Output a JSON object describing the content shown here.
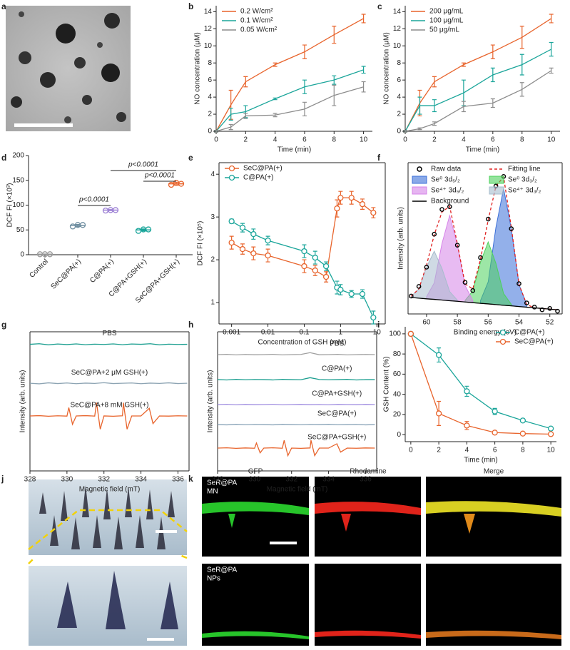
{
  "panel_labels": [
    "a",
    "b",
    "c",
    "d",
    "e",
    "f",
    "g",
    "h",
    "i",
    "j",
    "k"
  ],
  "panel_k": {
    "columns": [
      "GFP",
      "Rhodamine",
      "Merge"
    ],
    "rows": [
      [
        "SeR@PA",
        "MN"
      ],
      [
        "SeR@PA",
        "NPs"
      ]
    ]
  },
  "chart_data": [
    {
      "type": "line",
      "xlabel": "Time (min)",
      "ylabel": "NO concentration (μM)",
      "legend": "upper left",
      "frame": "axes",
      "x": [
        0,
        1,
        2,
        4,
        6,
        8,
        10
      ],
      "xlim": [
        0,
        10.6
      ],
      "ylim": [
        0,
        14.7
      ],
      "xticks": [
        0,
        2,
        4,
        6,
        8,
        10
      ],
      "yticks": [
        0,
        2,
        4,
        6,
        8,
        10,
        12,
        14
      ],
      "series": [
        {
          "name": "0.2 W/cm²",
          "color": "#e8642c",
          "values": [
            0,
            3.1,
            5.8,
            7.8,
            9.3,
            11.3,
            13.2
          ],
          "errors": [
            0.1,
            1.7,
            0.6,
            0.2,
            0.8,
            1.0,
            0.5
          ]
        },
        {
          "name": "0.1 W/cm²",
          "color": "#1aa59a",
          "values": [
            0,
            2.0,
            2.3,
            3.8,
            5.2,
            6.0,
            7.2
          ],
          "errors": [
            0.1,
            0.7,
            0.7,
            0.1,
            0.8,
            0.5,
            0.4
          ]
        },
        {
          "name": "0.05 W/cm²",
          "color": "#8c8c8c",
          "values": [
            0,
            0.5,
            1.8,
            1.9,
            2.6,
            4.2,
            5.2
          ],
          "errors": [
            0.1,
            0.3,
            0.3,
            0.2,
            0.8,
            1.2,
            0.6
          ]
        }
      ]
    },
    {
      "type": "line",
      "xlabel": "Time (min)",
      "ylabel": "NO concentration (μM)",
      "legend": "upper left",
      "frame": "axes",
      "x": [
        0,
        1,
        2,
        4,
        6,
        8,
        10
      ],
      "xlim": [
        0,
        10.6
      ],
      "ylim": [
        0,
        14.7
      ],
      "xticks": [
        0,
        2,
        4,
        6,
        8,
        10
      ],
      "yticks": [
        0,
        2,
        4,
        6,
        8,
        10,
        12,
        14
      ],
      "series": [
        {
          "name": "200 μg/mL",
          "color": "#e8642c",
          "values": [
            0,
            3.3,
            5.8,
            7.8,
            9.3,
            11.0,
            13.2
          ],
          "errors": [
            0.1,
            1.5,
            0.6,
            0.2,
            0.8,
            1.3,
            0.5
          ]
        },
        {
          "name": "100 μg/mL",
          "color": "#1aa59a",
          "values": [
            0,
            3.0,
            3.0,
            4.5,
            6.6,
            7.8,
            9.6
          ],
          "errors": [
            0.1,
            1.0,
            0.7,
            1.5,
            0.8,
            1.2,
            0.8
          ]
        },
        {
          "name": "50 μg/mL",
          "color": "#8c8c8c",
          "values": [
            0,
            0.3,
            0.9,
            2.9,
            3.3,
            4.9,
            7.1
          ],
          "errors": [
            0.1,
            0.1,
            0.2,
            0.6,
            0.5,
            0.8,
            0.3
          ]
        }
      ]
    },
    {
      "type": "strip",
      "ylabel": "DCF FI (×10³)",
      "frame": "axes",
      "categories": [
        "Control",
        "SeC@PA(+)",
        "C@PA(+)",
        "C@PA+GSH(+)",
        "SeC@PA+GSH(+)"
      ],
      "colors": [
        "#9a9a9a",
        "#6f8ea0",
        "#9b7fd4",
        "#1aa59a",
        "#e8642c"
      ],
      "values": [
        1,
        59,
        90,
        50,
        143
      ],
      "errors": [
        0.5,
        2,
        1,
        2,
        3
      ],
      "points": [
        [
          1,
          1,
          1
        ],
        [
          57,
          60,
          60
        ],
        [
          89,
          90,
          90
        ],
        [
          48,
          51,
          51
        ],
        [
          141,
          145,
          143
        ]
      ],
      "ylim": [
        0,
        200
      ],
      "yticks": [
        0,
        50,
        100,
        150,
        200
      ],
      "annotations": [
        "p<0.0001",
        "p<0.0001",
        "p<0.0001"
      ]
    },
    {
      "type": "line",
      "xlabel": "Concentration of GSH (mM)",
      "ylabel": "DCF FI (×10⁵)",
      "legend": "upper left",
      "frame": "box",
      "xscale": "log",
      "x": [
        0.001,
        0.002,
        0.004,
        0.01,
        0.1,
        0.2,
        0.4,
        0.8,
        1,
        2,
        4,
        8
      ],
      "xlim": [
        0.00045,
        17
      ],
      "ylim": [
        0.5,
        4.27
      ],
      "xticks": [
        0.001,
        0.01,
        0.1,
        1,
        10
      ],
      "yticks": [
        1,
        2,
        3,
        4
      ],
      "series": [
        {
          "name": "SeC@PA(+)",
          "color": "#e8642c",
          "marker": "circle",
          "values": [
            2.4,
            2.25,
            2.15,
            2.1,
            1.85,
            1.75,
            1.6,
            3.2,
            3.45,
            3.45,
            3.3,
            3.1
          ],
          "errors": [
            0.15,
            0.12,
            0.15,
            0.15,
            0.15,
            0.12,
            0.12,
            0.2,
            0.15,
            0.15,
            0.12,
            0.12
          ]
        },
        {
          "name": "C@PA(+)",
          "color": "#1aa59a",
          "marker": "circle",
          "values": [
            2.9,
            2.75,
            2.6,
            2.45,
            2.2,
            2.05,
            1.85,
            1.35,
            1.3,
            1.2,
            1.2,
            0.65
          ],
          "errors": [
            0.05,
            0.1,
            0.12,
            0.1,
            0.15,
            0.15,
            0.1,
            0.15,
            0.12,
            0.08,
            0.1,
            0.15
          ]
        }
      ]
    },
    {
      "type": "line",
      "xlabel": "Binding energy (eV)",
      "ylabel": "Intensity (arb. units)",
      "legend": "grid",
      "frame": "box",
      "x": [
        61,
        60.5,
        60,
        59.5,
        59,
        58.5,
        58,
        57.5,
        57,
        56.5,
        56,
        55.5,
        55,
        54.5,
        54,
        53.5,
        53,
        52.5,
        52,
        51.5
      ],
      "xlim": [
        61.2,
        51.2
      ],
      "ylim": [
        0,
        1.1
      ],
      "xticks": [
        60,
        58,
        56,
        54,
        52
      ],
      "series": [
        {
          "name": "Raw data",
          "kind": "points",
          "color": "#000000",
          "values": [
            0.13,
            0.2,
            0.34,
            0.58,
            0.76,
            0.78,
            0.5,
            0.23,
            0.17,
            0.41,
            0.69,
            0.93,
            1.0,
            0.62,
            0.22,
            0.08,
            0.05,
            0.03,
            0.04,
            0.02
          ]
        },
        {
          "name": "Fitting line",
          "kind": "dashed",
          "color": "#e02020",
          "values": [
            0.128,
            0.182,
            0.355,
            0.576,
            0.741,
            0.783,
            0.51,
            0.218,
            0.182,
            0.397,
            0.683,
            0.928,
            0.998,
            0.63,
            0.214,
            0.069,
            0.044,
            0.04,
            0.035,
            0.03
          ]
        },
        {
          "name": "Se⁰ 3d₅/₂",
          "kind": "area",
          "color": "#3b6fd8",
          "values": [
            null,
            null,
            null,
            null,
            null,
            null,
            null,
            null,
            null,
            0.097,
            0.233,
            0.628,
            0.913,
            0.619,
            0.214,
            0.069,
            null,
            null,
            null,
            null
          ]
        },
        {
          "name": "Se⁰ 3d₃/₂",
          "kind": "area",
          "color": "#4cd15c",
          "values": [
            null,
            null,
            null,
            null,
            null,
            null,
            null,
            0.098,
            0.167,
            0.377,
            0.523,
            0.368,
            0.148,
            0.07,
            null,
            null,
            null,
            null,
            null,
            null
          ]
        },
        {
          "name": "Se⁴⁺ 3d₅/₂",
          "kind": "area",
          "color": "#d684e8",
          "values": [
            null,
            null,
            0.125,
            0.226,
            0.511,
            0.716,
            0.502,
            0.207,
            0.097,
            null,
            null,
            null,
            null,
            null,
            null,
            null,
            null,
            null,
            null,
            null
          ]
        },
        {
          "name": "Se⁴⁺ 3d₃/₂",
          "kind": "area",
          "color": "#a7bccd",
          "values": [
            0.128,
            0.182,
            0.34,
            0.456,
            0.331,
            0.163,
            0.1,
            null,
            null,
            null,
            null,
            null,
            null,
            null,
            null,
            null,
            null,
            null,
            null,
            null
          ]
        },
        {
          "name": "Background",
          "kind": "line",
          "color": "#000000",
          "values": [
            0.12,
            0.115,
            0.11,
            0.106,
            0.101,
            0.096,
            0.092,
            0.087,
            0.082,
            0.077,
            0.073,
            0.068,
            0.063,
            0.059,
            0.054,
            0.049,
            0.044,
            0.04,
            0.035,
            0.03
          ]
        }
      ]
    },
    {
      "type": "line",
      "xlabel": "Magnetic field (mT)",
      "ylabel": "Intensity (arb. units)",
      "legend": "inline",
      "label_position": "center",
      "frame": "box",
      "xlim": [
        328,
        336.6
      ],
      "ylim": [
        0,
        10
      ],
      "xticks": [
        328,
        330,
        332,
        334,
        336
      ],
      "series": [
        {
          "name": "PBS",
          "color": "#1a9e8f",
          "x": [
            328,
            328.5,
            329,
            329.5,
            330,
            330.5,
            331,
            331.5,
            332,
            332.5,
            333,
            333.5,
            334,
            334.5,
            335,
            335.5,
            336,
            336.5
          ],
          "values": [
            9.1,
            9.14,
            9.06,
            9.12,
            9.08,
            9.13,
            9.07,
            9.11,
            9.09,
            9.13,
            9.07,
            9.12,
            9.1,
            9.14,
            9.06,
            9.11,
            9.09,
            9.1
          ]
        },
        {
          "name": "SeC@PA+2 μM GSH(+)",
          "color": "#8da4b3",
          "x": [
            328,
            328.5,
            329,
            329.5,
            330,
            330.5,
            331,
            331.5,
            332,
            332.5,
            333,
            333.5,
            334,
            334.5,
            335,
            335.5,
            336,
            336.5
          ],
          "values": [
            6.3,
            6.26,
            6.33,
            6.28,
            6.32,
            6.27,
            6.31,
            6.29,
            6.34,
            6.28,
            6.3,
            6.32,
            6.27,
            6.31,
            6.29,
            6.33,
            6.28,
            6.3
          ]
        },
        {
          "name": "SeC@PA+8 mM GSH(+)",
          "color": "#e8642c",
          "x": [
            328,
            328.5,
            329,
            329.5,
            330,
            330.1,
            330.3,
            330.5,
            331,
            331.5,
            331.6,
            331.8,
            332,
            332.5,
            333,
            333.05,
            333.25,
            333.5,
            334,
            334.45,
            334.65,
            335,
            335.5,
            336,
            336.5
          ],
          "values": [
            3.95,
            3.97,
            3.93,
            3.96,
            3.94,
            4.55,
            3.35,
            3.95,
            3.97,
            3.94,
            4.9,
            3.0,
            3.95,
            3.93,
            3.96,
            4.9,
            3.0,
            3.95,
            3.95,
            4.5,
            3.4,
            3.95,
            3.94,
            3.96,
            3.95
          ]
        }
      ]
    },
    {
      "type": "line",
      "xlabel": "Magnetic field (mT)",
      "ylabel": "Intensity (arb. units)",
      "legend": "inline",
      "label_position": "right",
      "frame": "box",
      "xlim": [
        328,
        336.6
      ],
      "ylim": [
        0,
        10
      ],
      "xticks": [
        328,
        330,
        332,
        334,
        336
      ],
      "series": [
        {
          "name": "PBS",
          "color": "#a0a0a0",
          "x": [
            328,
            328.5,
            329,
            329.5,
            330,
            330.5,
            331,
            331.5,
            332,
            332.5,
            333,
            333.5,
            334,
            334.5,
            335,
            335.5,
            336,
            336.5
          ],
          "values": [
            8.36,
            8.38,
            8.34,
            8.37,
            8.35,
            8.36,
            8.38,
            8.34,
            8.36,
            8.37,
            8.5,
            8.35,
            8.36,
            8.38,
            8.34,
            8.36,
            8.37,
            8.36
          ]
        },
        {
          "name": "C@PA(+)",
          "color": "#1a9e8f",
          "x": [
            328,
            328.5,
            329,
            329.5,
            330,
            330.5,
            331,
            331.5,
            332,
            332.5,
            333,
            333.5,
            334,
            334.5,
            335,
            335.5,
            336,
            336.5
          ],
          "values": [
            6.56,
            6.54,
            6.58,
            6.55,
            6.57,
            6.56,
            6.54,
            6.58,
            6.56,
            6.55,
            6.7,
            6.57,
            6.55,
            6.56,
            6.58,
            6.54,
            6.56,
            6.56
          ]
        },
        {
          "name": "C@PA+GSH(+)",
          "color": "#a08ee0",
          "x": [
            328,
            328.5,
            329,
            329.5,
            330,
            330.5,
            331,
            331.5,
            332,
            332.5,
            333,
            333.5,
            334,
            334.5,
            335,
            335.5,
            336,
            336.5
          ],
          "values": [
            4.77,
            4.79,
            4.75,
            4.78,
            4.76,
            4.77,
            4.79,
            4.75,
            4.77,
            4.78,
            4.76,
            4.77,
            4.75,
            4.78,
            4.77,
            4.76,
            4.78,
            4.77
          ]
        },
        {
          "name": "SeC@PA(+)",
          "color": "#8aa4b8",
          "x": [
            328,
            328.5,
            329,
            329.5,
            330,
            330.5,
            331,
            331.5,
            332,
            332.5,
            333,
            333.5,
            334,
            334.5,
            335,
            335.5,
            336,
            336.5
          ],
          "values": [
            3.33,
            3.31,
            3.35,
            3.32,
            3.34,
            3.33,
            3.31,
            3.35,
            3.33,
            3.32,
            3.34,
            3.33,
            3.35,
            3.32,
            3.33,
            3.34,
            3.31,
            3.33
          ]
        },
        {
          "name": "SeC@PA+GSH(+)",
          "color": "#e8642c",
          "x": [
            328,
            328.5,
            329,
            329.5,
            330,
            330.1,
            330.3,
            330.5,
            331,
            331.5,
            331.6,
            331.8,
            332,
            332.5,
            333,
            333.05,
            333.25,
            333.5,
            334,
            334.45,
            334.65,
            335,
            335.5,
            336,
            336.5
          ],
          "values": [
            1.64,
            1.66,
            1.62,
            1.65,
            1.63,
            2.0,
            1.3,
            1.64,
            1.66,
            1.63,
            2.2,
            1.1,
            1.64,
            1.62,
            1.65,
            2.2,
            1.1,
            1.64,
            1.64,
            1.95,
            1.35,
            1.64,
            1.63,
            1.65,
            1.64
          ]
        }
      ]
    },
    {
      "type": "line",
      "xlabel": "Time (min)",
      "ylabel": "GSH Content (%)",
      "legend": "upper right",
      "frame": "axes",
      "x": [
        0,
        2,
        4,
        6,
        8,
        10
      ],
      "xlim": [
        -0.4,
        10.4
      ],
      "ylim": [
        -7,
        107
      ],
      "xticks": [
        0,
        2,
        4,
        6,
        8,
        10
      ],
      "yticks": [
        0,
        20,
        40,
        60,
        80,
        100
      ],
      "series": [
        {
          "name": "C@PA(+)",
          "color": "#1aa59a",
          "marker": "circle",
          "values": [
            100,
            79,
            43,
            23,
            14,
            6
          ],
          "errors": [
            2,
            7,
            5,
            3,
            1,
            1
          ]
        },
        {
          "name": "SeC@PA(+)",
          "color": "#e8642c",
          "marker": "circle",
          "values": [
            100,
            21,
            9,
            2,
            1,
            0.5
          ],
          "errors": [
            2,
            12,
            4,
            1,
            0.5,
            0.5
          ]
        }
      ]
    }
  ]
}
